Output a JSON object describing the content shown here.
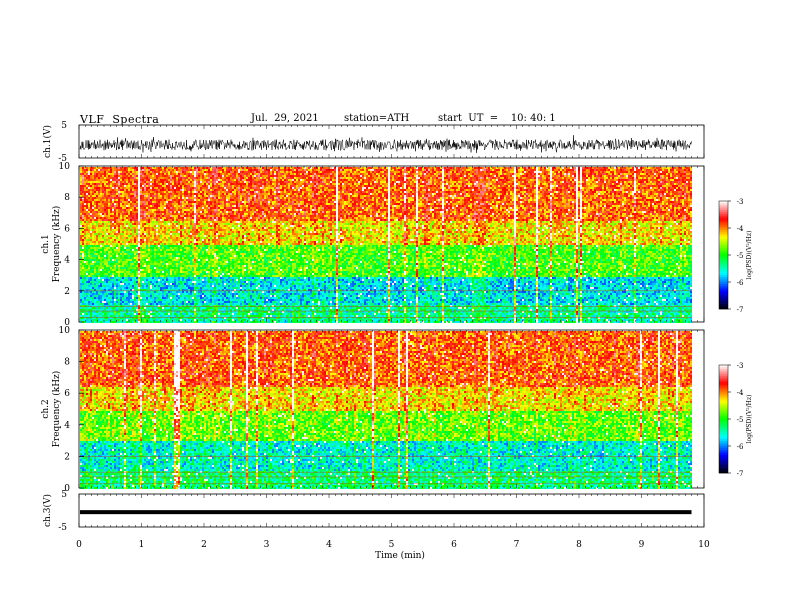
{
  "header": {
    "title": "VLF  Spectra",
    "date": "Jul.  29, 2021",
    "station": "station=ATH",
    "start_ut": "start  UT  =    10: 40: 1"
  },
  "chart_data": [
    {
      "id": "ch1-waveform",
      "type": "line",
      "ylabel": "ch.1(V)",
      "ylim": [
        -5,
        5
      ],
      "yticks": [
        "5",
        "-5"
      ],
      "xlim": [
        0,
        10
      ],
      "description_of_signal": "noisy waveform around -1 V spanning roughly -4 to 2 V, data until ~9.8 min"
    },
    {
      "id": "ch1-spectrogram",
      "type": "heatmap",
      "ylabel": "ch.1\nFrequency  (kHz)",
      "ylabel_lines": [
        "ch.1",
        "Frequency  (kHz)"
      ],
      "ylim": [
        0,
        10
      ],
      "yticks": [
        "0",
        "2",
        "4",
        "6",
        "8",
        "10"
      ],
      "xlim": [
        0,
        10
      ],
      "colorbar": {
        "label": "log(PSD)(V²/Hz)",
        "range": [
          -7,
          -3
        ],
        "ticks": [
          "-3",
          "-4",
          "-5",
          "-6",
          "-7"
        ],
        "colors": [
          "#000000",
          "#0000ff",
          "#00ffff",
          "#00ff00",
          "#ffff00",
          "#ff0000",
          "#ffffff"
        ]
      },
      "bands_kHz": [
        {
          "from": 0,
          "to": 1.2,
          "level": -5.4
        },
        {
          "from": 1.2,
          "to": 3.0,
          "level": -5.7
        },
        {
          "from": 3.0,
          "to": 5.0,
          "level": -4.9
        },
        {
          "from": 5.0,
          "to": 6.5,
          "level": -4.3
        },
        {
          "from": 6.5,
          "to": 10.0,
          "level": -3.9
        }
      ]
    },
    {
      "id": "ch2-spectrogram",
      "type": "heatmap",
      "ylabel": "ch.2\nFrequency  (kHz)",
      "ylabel_lines": [
        "ch.2",
        "Frequency  (kHz)"
      ],
      "ylim": [
        0,
        10
      ],
      "yticks": [
        "0",
        "2",
        "4",
        "6",
        "8",
        "10"
      ],
      "xlim": [
        0,
        10
      ],
      "colorbar": {
        "label": "log(PSD)(V²/Hz)",
        "range": [
          -7,
          -3
        ],
        "ticks": [
          "-3",
          "-4",
          "-5",
          "-6",
          "-7"
        ],
        "colors": [
          "#000000",
          "#0000ff",
          "#00ffff",
          "#00ff00",
          "#ffff00",
          "#ff0000",
          "#ffffff"
        ]
      },
      "bands_kHz": [
        {
          "from": 0,
          "to": 1.2,
          "level": -5.3
        },
        {
          "from": 1.2,
          "to": 3.0,
          "level": -5.6
        },
        {
          "from": 3.0,
          "to": 5.0,
          "level": -4.8
        },
        {
          "from": 5.0,
          "to": 6.5,
          "level": -4.3
        },
        {
          "from": 6.5,
          "to": 10.0,
          "level": -3.9
        }
      ]
    },
    {
      "id": "ch3-waveform",
      "type": "line",
      "ylabel": "ch.3(V)",
      "ylim": [
        -5,
        5
      ],
      "yticks": [
        "5",
        "-5"
      ],
      "xlim": [
        0,
        10
      ],
      "constant_value": -0.5
    }
  ],
  "xaxis": {
    "label": "Time  (min)",
    "ticks": [
      "0",
      "1",
      "2",
      "3",
      "4",
      "5",
      "6",
      "7",
      "8",
      "9",
      "10"
    ],
    "data_end_min": 9.8
  }
}
